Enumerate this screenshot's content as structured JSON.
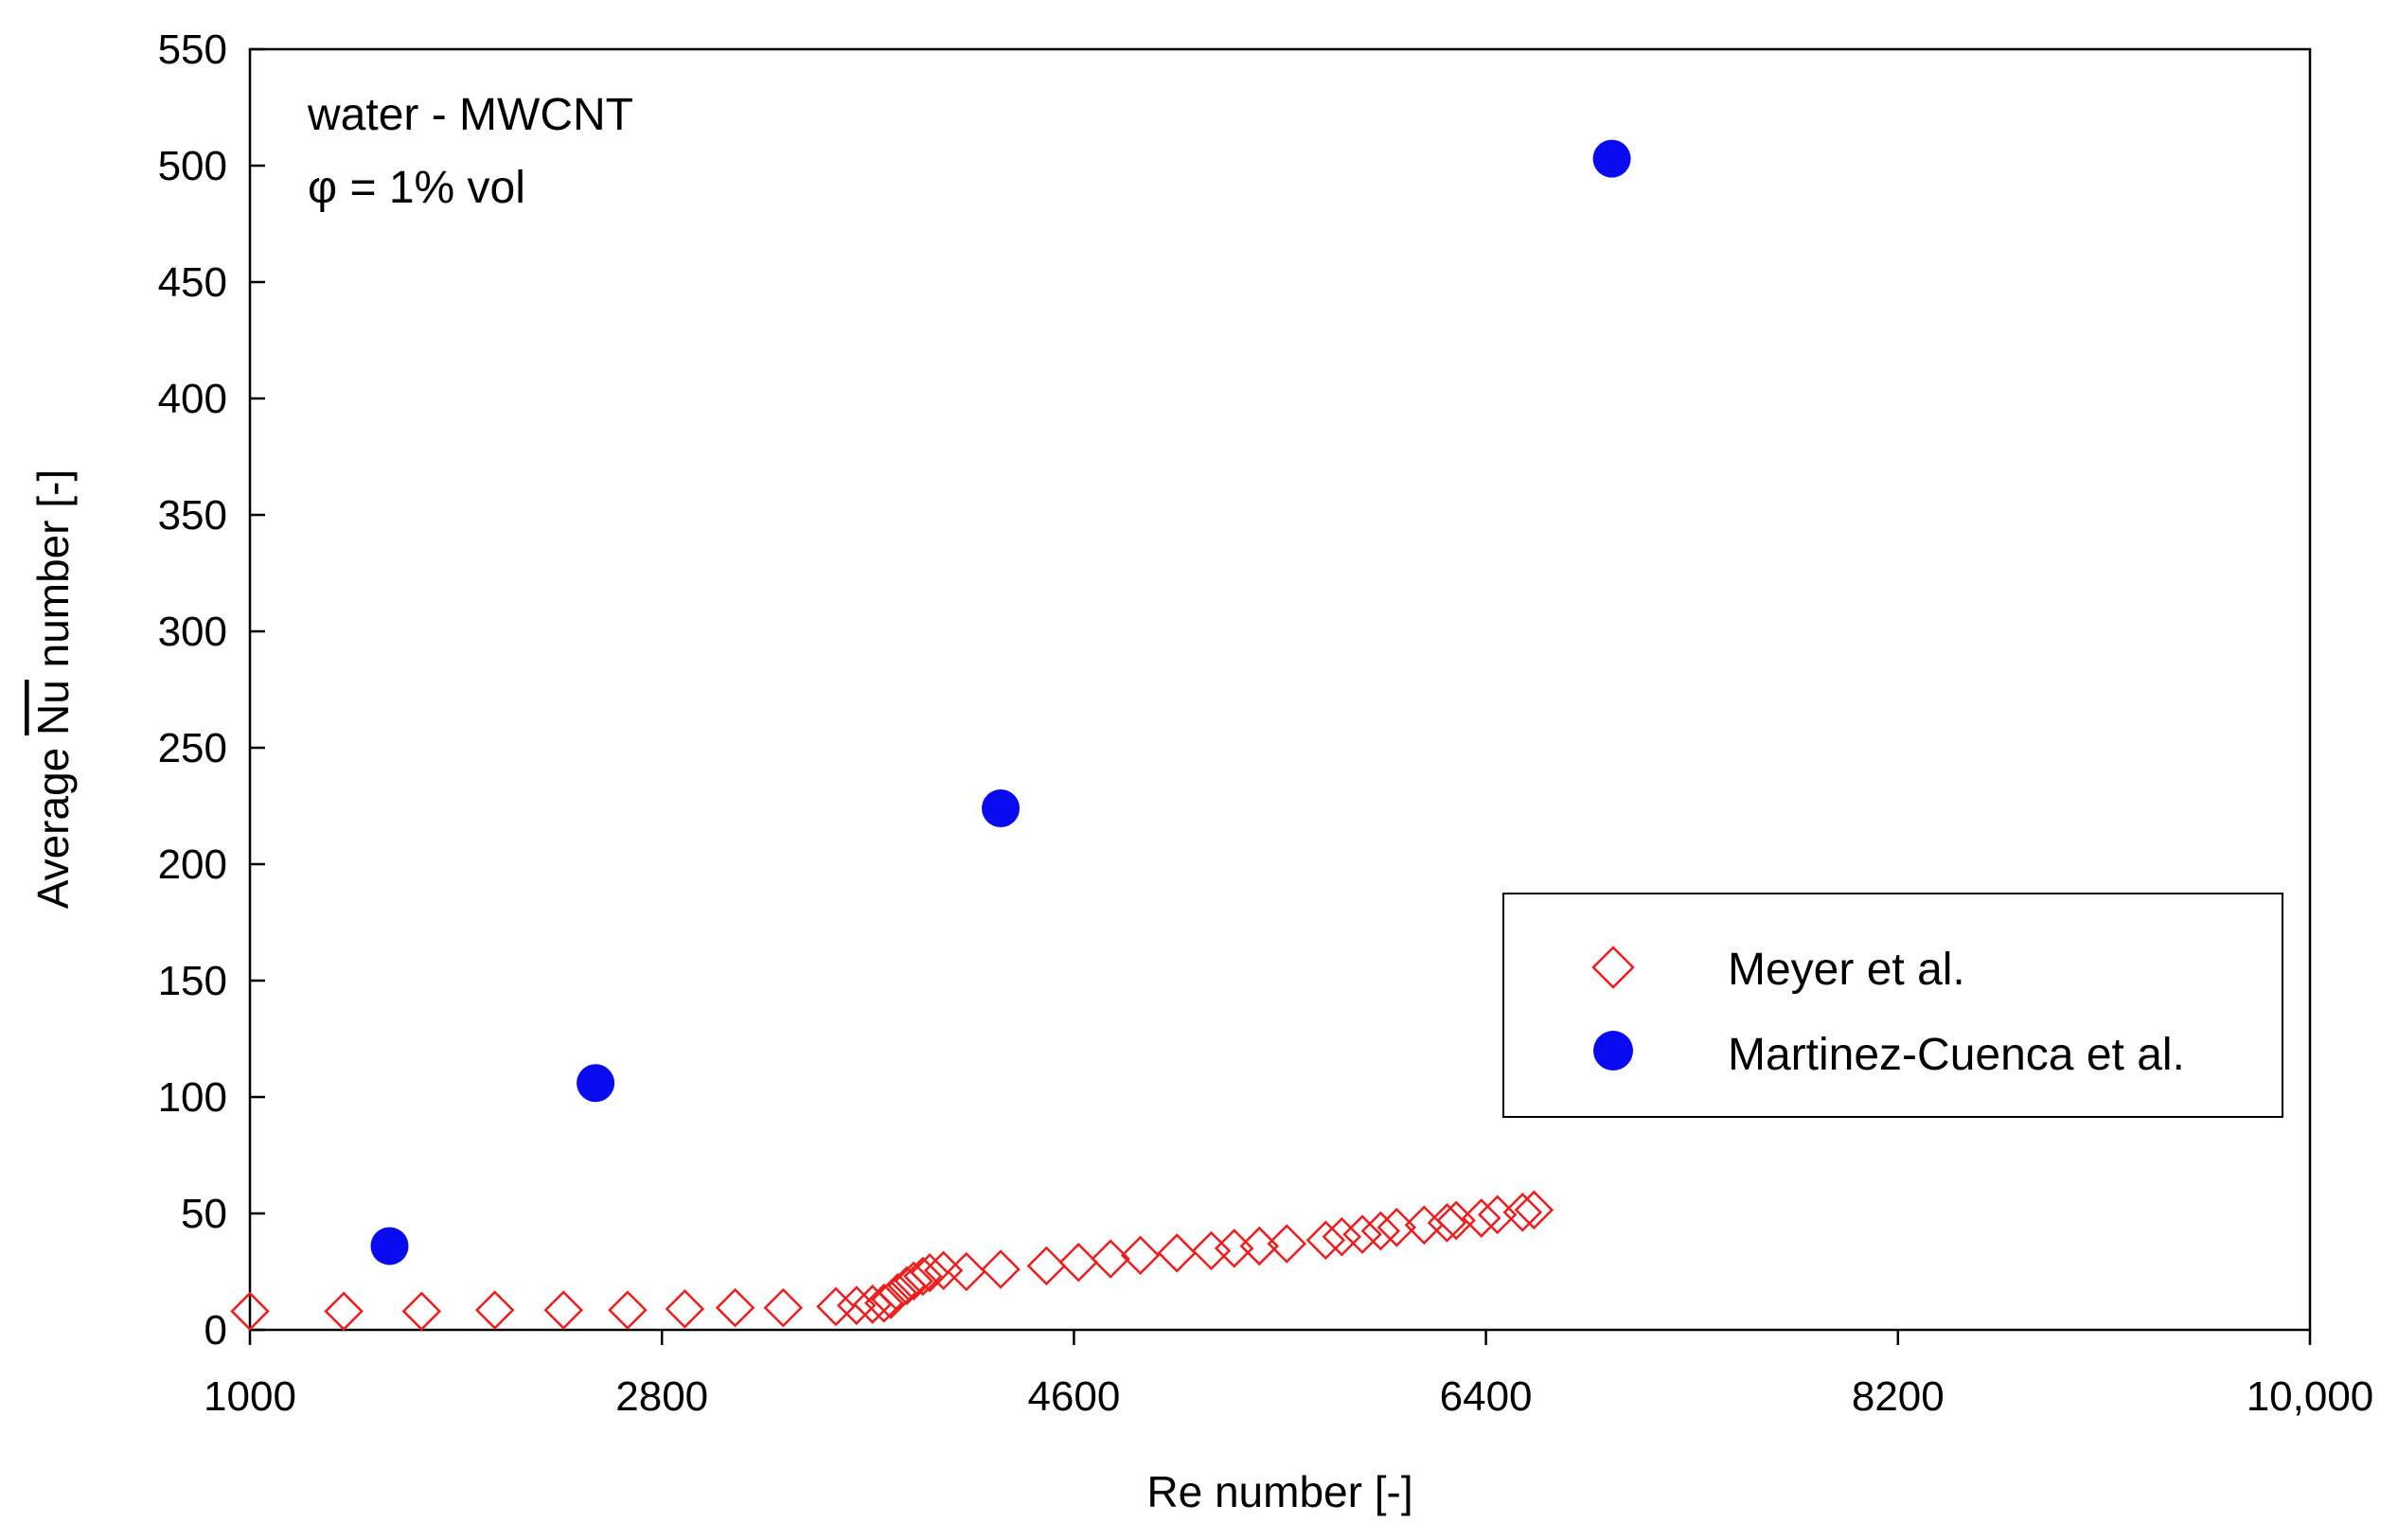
{
  "chart_data": {
    "type": "scatter",
    "title": "",
    "xlabel": "Re number [-]",
    "ylabel": "Average Nu number [-]",
    "ylabel_parts": {
      "prefix": "Average ",
      "symbol": "Nu",
      "suffix": " number [-]"
    },
    "xlim": [
      1000,
      10000
    ],
    "ylim": [
      0,
      550
    ],
    "x_ticks": [
      1000,
      2800,
      4600,
      6400,
      8200,
      10000
    ],
    "x_tick_labels": [
      "1000",
      "2800",
      "4600",
      "6400",
      "8200",
      "10,000"
    ],
    "y_ticks": [
      0,
      50,
      100,
      150,
      200,
      250,
      300,
      350,
      400,
      450,
      500,
      550
    ],
    "y_tick_labels": [
      "0",
      "50",
      "100",
      "150",
      "200",
      "250",
      "300",
      "350",
      "400",
      "450",
      "500",
      "550"
    ],
    "grid": false,
    "annotations": [
      "water - MWCNT",
      "φ = 1% vol"
    ],
    "legend_position": "right",
    "series": [
      {
        "name": "Meyer et al.",
        "marker": "diamond-open",
        "color": "#ee1c1c",
        "x": [
          1000,
          1410,
          1750,
          2070,
          2370,
          2650,
          2900,
          3120,
          3330,
          3560,
          3650,
          3720,
          3770,
          3800,
          3830,
          3870,
          3900,
          3940,
          3970,
          4030,
          4130,
          4280,
          4480,
          4620,
          4760,
          4890,
          5050,
          5200,
          5300,
          5410,
          5530,
          5700,
          5770,
          5860,
          5940,
          6010,
          6130,
          6230,
          6270,
          6380,
          6450,
          6560,
          6610
        ],
        "y": [
          8,
          8,
          8,
          8.5,
          8.5,
          8.5,
          9,
          9.5,
          9.5,
          10,
          10.5,
          11,
          11.5,
          13,
          16,
          19,
          21,
          23,
          24.5,
          25.5,
          25,
          26,
          27.5,
          29,
          30.5,
          32,
          33,
          34,
          35,
          36,
          37,
          38.5,
          40,
          41,
          42.5,
          44,
          45,
          46,
          47,
          48,
          49.5,
          50.5,
          51.5
        ]
      },
      {
        "name": "Martinez-Cuenca et al.",
        "marker": "circle-filled",
        "color": "#0a0af0",
        "x": [
          1610,
          2510,
          4280,
          6950
        ],
        "y": [
          36,
          106,
          224,
          503
        ]
      }
    ]
  }
}
